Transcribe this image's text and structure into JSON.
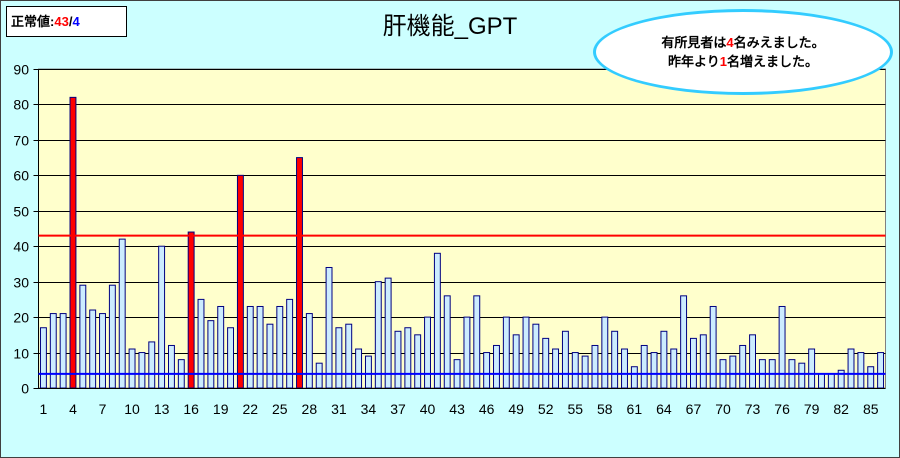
{
  "normal_value": {
    "label": "正常値:",
    "upper": "43",
    "separator": "/",
    "lower": "4",
    "upper_color": "#ff0000",
    "lower_color": "#0000ff"
  },
  "note": {
    "line1": {
      "before": "有所見者は",
      "count": "4",
      "after": "名みえました。"
    },
    "line2": {
      "before": "昨年より",
      "count": "1",
      "after": "名増えました。"
    },
    "highlight_color": "#ff0000",
    "border_color": "#33ccff"
  },
  "chart_data": {
    "type": "bar",
    "title": "肝機能_GPT",
    "x": [
      1,
      2,
      3,
      4,
      5,
      6,
      7,
      8,
      9,
      10,
      11,
      12,
      13,
      14,
      15,
      16,
      17,
      18,
      19,
      20,
      21,
      22,
      23,
      24,
      25,
      26,
      27,
      28,
      29,
      30,
      31,
      32,
      33,
      34,
      35,
      36,
      37,
      38,
      39,
      40,
      41,
      42,
      43,
      44,
      45,
      46,
      47,
      48,
      49,
      50,
      51,
      52,
      53,
      54,
      55,
      56,
      57,
      58,
      59,
      60,
      61,
      62,
      63,
      64,
      65,
      66,
      67,
      68,
      69,
      70,
      71,
      72,
      73,
      74,
      75,
      76,
      77,
      78,
      79,
      80,
      81,
      82,
      83,
      84,
      85,
      86
    ],
    "values": [
      17,
      21,
      21,
      82,
      29,
      22,
      21,
      29,
      42,
      11,
      10,
      13,
      40,
      12,
      8,
      44,
      25,
      19,
      23,
      17,
      60,
      23,
      23,
      18,
      23,
      25,
      65,
      21,
      7,
      34,
      17,
      18,
      11,
      9,
      30,
      31,
      16,
      17,
      15,
      20,
      38,
      26,
      8,
      20,
      26,
      10,
      12,
      20,
      15,
      20,
      18,
      14,
      11,
      16,
      10,
      9,
      12,
      20,
      16,
      11,
      6,
      12,
      10,
      16,
      11,
      26,
      14,
      15,
      23,
      8,
      9,
      12,
      15,
      8,
      8,
      23,
      8,
      7,
      11,
      4,
      4,
      5,
      11,
      10,
      6,
      10
    ],
    "xticks": [
      1,
      4,
      7,
      10,
      13,
      16,
      19,
      22,
      25,
      28,
      31,
      34,
      37,
      40,
      43,
      46,
      49,
      52,
      55,
      58,
      61,
      64,
      67,
      70,
      73,
      76,
      79,
      82,
      85
    ],
    "yticks": [
      0,
      10,
      20,
      30,
      40,
      50,
      60,
      70,
      80,
      90
    ],
    "ylim": [
      0,
      90
    ],
    "grid": true,
    "legend": "none",
    "reference_lines": [
      {
        "value": 43,
        "color": "#ff0000"
      },
      {
        "value": 4,
        "color": "#0000ff"
      }
    ],
    "bar_color": "#ccecff",
    "bar_edge_color": "#000080",
    "highlight_color": "#ff0000",
    "background_color": "#ccffff",
    "plot_background_color": "#ffffcc",
    "grid_color": "#000000"
  }
}
